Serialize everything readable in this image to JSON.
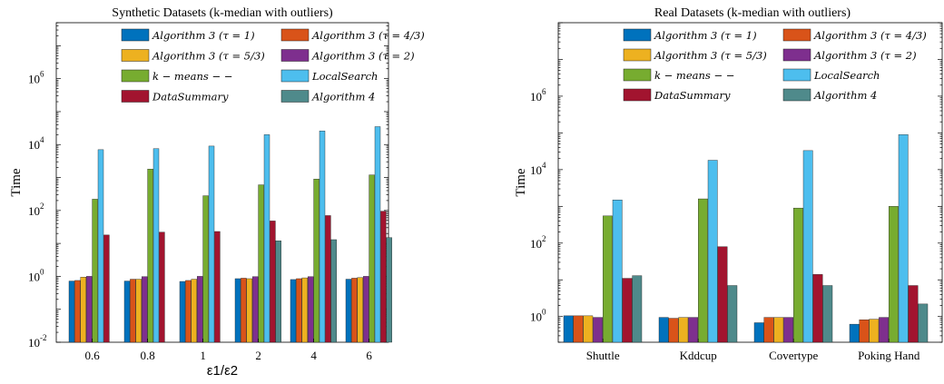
{
  "colors": [
    "#0072BD",
    "#D95319",
    "#EDB120",
    "#7E2F8E",
    "#77AC30",
    "#4DBEEE",
    "#A2142F",
    "#4F8A8B"
  ],
  "legend": [
    {
      "label": "Algorithm 3 (τ = 1)"
    },
    {
      "label": "Algorithm 3 (τ = 4/3)"
    },
    {
      "label": "Algorithm 3 (τ = 5/3)"
    },
    {
      "label": "Algorithm 3 (τ = 2)"
    },
    {
      "label": "k − means − −"
    },
    {
      "label": "LocalSearch"
    },
    {
      "label": "DataSummary"
    },
    {
      "label": "Algorithm 4"
    }
  ],
  "chart_data": [
    {
      "type": "bar",
      "title": "Synthetic Datasets (k-median with outliers)",
      "xlabel": "ε1/ε2",
      "ylabel": "Time",
      "yscale": "log",
      "ylim": [
        0.01,
        50000000
      ],
      "yticks": [
        0.01,
        1,
        100,
        10000,
        1000000
      ],
      "ytick_labels": [
        "10",
        "10",
        "10",
        "10",
        "10"
      ],
      "ytick_exponents": [
        "-2",
        "0",
        "2",
        "4",
        "6"
      ],
      "categories": [
        "0.6",
        "0.8",
        "1",
        "2",
        "4",
        "6"
      ],
      "series": [
        {
          "name": "Algorithm 3 (τ = 1)",
          "values": [
            0.72,
            0.72,
            0.7,
            0.85,
            0.8,
            0.82
          ]
        },
        {
          "name": "Algorithm 3 (τ = 4/3)",
          "values": [
            0.75,
            0.82,
            0.75,
            0.88,
            0.85,
            0.88
          ]
        },
        {
          "name": "Algorithm 3 (τ = 5/3)",
          "values": [
            0.95,
            0.82,
            0.82,
            0.85,
            0.9,
            0.92
          ]
        },
        {
          "name": "Algorithm 3 (τ = 2)",
          "values": [
            1.0,
            0.98,
            1.0,
            0.98,
            0.98,
            1.0
          ]
        },
        {
          "name": "k − means − −",
          "values": [
            220,
            1800,
            280,
            600,
            900,
            1200
          ]
        },
        {
          "name": "LocalSearch",
          "values": [
            7000,
            7500,
            9000,
            20000,
            26000,
            35000
          ]
        },
        {
          "name": "DataSummary",
          "values": [
            18,
            22,
            23,
            48,
            70,
            95
          ]
        },
        {
          "name": "Algorithm 4",
          "values": [
            null,
            null,
            null,
            12,
            13,
            15
          ]
        }
      ]
    },
    {
      "type": "bar",
      "title": "Real Datasets (k-median with outliers)",
      "xlabel": "",
      "ylabel": "Time",
      "yscale": "log",
      "ylim": [
        0.2,
        100000000
      ],
      "yticks": [
        1,
        100,
        10000,
        1000000
      ],
      "ytick_labels": [
        "10",
        "10",
        "10",
        "10"
      ],
      "ytick_exponents": [
        "0",
        "2",
        "4",
        "6"
      ],
      "categories": [
        "Shuttle",
        "Kddcup",
        "Covertype",
        "Poking Hand"
      ],
      "series": [
        {
          "name": "Algorithm 3 (τ = 1)",
          "values": [
            1.05,
            0.95,
            0.68,
            0.62
          ]
        },
        {
          "name": "Algorithm 3 (τ = 4/3)",
          "values": [
            1.05,
            0.9,
            0.95,
            0.82
          ]
        },
        {
          "name": "Algorithm 3 (τ = 5/3)",
          "values": [
            1.05,
            0.95,
            0.95,
            0.85
          ]
        },
        {
          "name": "Algorithm 3 (τ = 2)",
          "values": [
            0.95,
            0.95,
            0.95,
            0.95
          ]
        },
        {
          "name": "k − means − −",
          "values": [
            550,
            1600,
            900,
            1000
          ]
        },
        {
          "name": "LocalSearch",
          "values": [
            1500,
            18000,
            33000,
            90000
          ]
        },
        {
          "name": "DataSummary",
          "values": [
            11,
            80,
            14,
            7
          ]
        },
        {
          "name": "Algorithm 4",
          "values": [
            13,
            7,
            7,
            2.2
          ]
        }
      ]
    }
  ]
}
